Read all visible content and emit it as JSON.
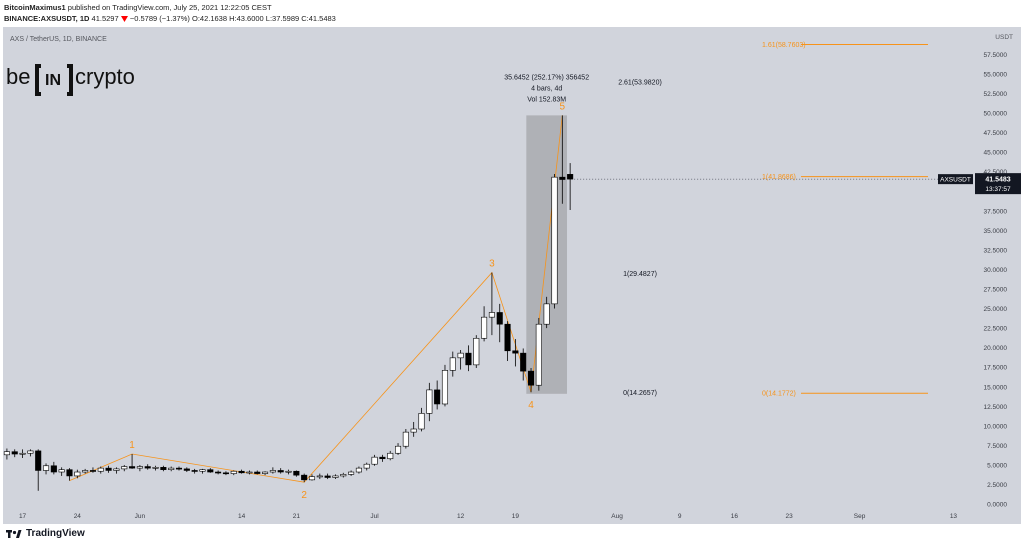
{
  "header": {
    "author": "BitcoinMaximus1",
    "published_text": "published on TradingView.com, July 25, 2021 12:22:05 CEST",
    "symbol_line": "BINANCE:AXSUSDT, 1D",
    "last": "41.5297",
    "change_icon": "down-triangle-icon",
    "change": "−0.5789 (−1.37%)",
    "ohlc": "O:42.1638 H:43.6000 L:37.5989 C:41.5483"
  },
  "logo": {
    "text_left": "be",
    "text_mid": "IN",
    "text_right": "crypto"
  },
  "footer": {
    "brand": "TradingView"
  },
  "colors": {
    "plot_bg": "#d1d4dc",
    "wave": "#f7931a",
    "fib": "#f7931a",
    "text_dark": "#131722",
    "up_candle": "#ffffff",
    "down_candle": "#000000"
  },
  "chart_data": {
    "type": "candlestick",
    "title": "AXS / TetherUS, 1D, BINANCE",
    "y_axis": {
      "range": [
        -0.5,
        61
      ],
      "unit_label": "USDT",
      "ticks": [
        "57.5000",
        "55.0000",
        "52.5000",
        "50.0000",
        "47.5000",
        "45.0000",
        "42.5000",
        "40.0000",
        "37.5000",
        "35.0000",
        "32.5000",
        "30.0000",
        "27.5000",
        "25.0000",
        "22.5000",
        "20.0000",
        "17.5000",
        "15.0000",
        "12.5000",
        "10.0000",
        "7.5000",
        "5.0000",
        "2.5000",
        "0.0000"
      ],
      "tick_values": [
        57.5,
        55,
        52.5,
        50,
        47.5,
        45,
        42.5,
        40,
        37.5,
        35,
        32.5,
        30,
        27.5,
        25,
        22.5,
        20,
        17.5,
        15,
        12.5,
        10,
        7.5,
        5,
        2.5,
        0
      ]
    },
    "x_axis": {
      "ticks": [
        {
          "label": "17",
          "date": "2021-05-17"
        },
        {
          "label": "24",
          "date": "2021-05-24"
        },
        {
          "label": "Jun",
          "date": "2021-06-01"
        },
        {
          "label": "14",
          "date": "2021-06-14"
        },
        {
          "label": "21",
          "date": "2021-06-21"
        },
        {
          "label": "Jul",
          "date": "2021-07-01"
        },
        {
          "label": "12",
          "date": "2021-07-12"
        },
        {
          "label": "19",
          "date": "2021-07-19"
        },
        {
          "label": "Aug",
          "date": "2021-08-01"
        },
        {
          "label": "9",
          "date": "2021-08-09"
        },
        {
          "label": "16",
          "date": "2021-08-16"
        },
        {
          "label": "23",
          "date": "2021-08-23"
        },
        {
          "label": "Sep",
          "date": "2021-09-01"
        },
        {
          "label": "13",
          "date": "2021-09-13"
        }
      ],
      "range": [
        "2021-05-15",
        "2021-09-16"
      ]
    },
    "candles": [
      {
        "date": "2021-05-15",
        "o": 6.3,
        "h": 7.1,
        "l": 5.7,
        "c": 6.7
      },
      {
        "date": "2021-05-16",
        "o": 6.7,
        "h": 7.0,
        "l": 6.0,
        "c": 6.4
      },
      {
        "date": "2021-05-17",
        "o": 6.4,
        "h": 7.0,
        "l": 5.9,
        "c": 6.5
      },
      {
        "date": "2021-05-18",
        "o": 6.5,
        "h": 7.0,
        "l": 6.1,
        "c": 6.8
      },
      {
        "date": "2021-05-19",
        "o": 6.8,
        "h": 7.0,
        "l": 1.7,
        "c": 4.3
      },
      {
        "date": "2021-05-20",
        "o": 4.3,
        "h": 5.2,
        "l": 3.8,
        "c": 4.9
      },
      {
        "date": "2021-05-21",
        "o": 4.9,
        "h": 5.4,
        "l": 3.8,
        "c": 4.1
      },
      {
        "date": "2021-05-22",
        "o": 4.1,
        "h": 4.7,
        "l": 3.6,
        "c": 4.4
      },
      {
        "date": "2021-05-23",
        "o": 4.4,
        "h": 4.6,
        "l": 3.0,
        "c": 3.6
      },
      {
        "date": "2021-05-24",
        "o": 3.6,
        "h": 4.4,
        "l": 3.3,
        "c": 4.1
      },
      {
        "date": "2021-05-25",
        "o": 4.1,
        "h": 4.5,
        "l": 3.9,
        "c": 4.3
      },
      {
        "date": "2021-05-26",
        "o": 4.3,
        "h": 4.7,
        "l": 4.0,
        "c": 4.2
      },
      {
        "date": "2021-05-27",
        "o": 4.2,
        "h": 4.8,
        "l": 3.9,
        "c": 4.6
      },
      {
        "date": "2021-05-28",
        "o": 4.6,
        "h": 4.9,
        "l": 4.0,
        "c": 4.3
      },
      {
        "date": "2021-05-29",
        "o": 4.3,
        "h": 4.7,
        "l": 3.9,
        "c": 4.5
      },
      {
        "date": "2021-05-30",
        "o": 4.5,
        "h": 5.0,
        "l": 4.2,
        "c": 4.8
      },
      {
        "date": "2021-05-31",
        "o": 4.8,
        "h": 6.4,
        "l": 4.5,
        "c": 4.6
      },
      {
        "date": "2021-06-01",
        "o": 4.6,
        "h": 5.0,
        "l": 4.2,
        "c": 4.8
      },
      {
        "date": "2021-06-02",
        "o": 4.8,
        "h": 5.1,
        "l": 4.4,
        "c": 4.6
      },
      {
        "date": "2021-06-03",
        "o": 4.6,
        "h": 4.9,
        "l": 4.3,
        "c": 4.7
      },
      {
        "date": "2021-06-04",
        "o": 4.7,
        "h": 4.9,
        "l": 4.2,
        "c": 4.4
      },
      {
        "date": "2021-06-05",
        "o": 4.4,
        "h": 4.8,
        "l": 4.2,
        "c": 4.6
      },
      {
        "date": "2021-06-06",
        "o": 4.6,
        "h": 4.8,
        "l": 4.3,
        "c": 4.5
      },
      {
        "date": "2021-06-07",
        "o": 4.5,
        "h": 4.7,
        "l": 4.1,
        "c": 4.3
      },
      {
        "date": "2021-06-08",
        "o": 4.3,
        "h": 4.5,
        "l": 3.9,
        "c": 4.2
      },
      {
        "date": "2021-06-09",
        "o": 4.2,
        "h": 4.5,
        "l": 3.9,
        "c": 4.4
      },
      {
        "date": "2021-06-10",
        "o": 4.4,
        "h": 4.6,
        "l": 4.0,
        "c": 4.1
      },
      {
        "date": "2021-06-11",
        "o": 4.1,
        "h": 4.3,
        "l": 3.8,
        "c": 4.0
      },
      {
        "date": "2021-06-12",
        "o": 4.0,
        "h": 4.2,
        "l": 3.7,
        "c": 3.9
      },
      {
        "date": "2021-06-13",
        "o": 3.9,
        "h": 4.3,
        "l": 3.7,
        "c": 4.2
      },
      {
        "date": "2021-06-14",
        "o": 4.2,
        "h": 4.4,
        "l": 3.9,
        "c": 4.0
      },
      {
        "date": "2021-06-15",
        "o": 4.0,
        "h": 4.3,
        "l": 3.8,
        "c": 4.1
      },
      {
        "date": "2021-06-16",
        "o": 4.1,
        "h": 4.3,
        "l": 3.8,
        "c": 3.9
      },
      {
        "date": "2021-06-17",
        "o": 3.9,
        "h": 4.2,
        "l": 3.7,
        "c": 4.1
      },
      {
        "date": "2021-06-18",
        "o": 4.1,
        "h": 4.7,
        "l": 3.9,
        "c": 4.3
      },
      {
        "date": "2021-06-19",
        "o": 4.3,
        "h": 4.6,
        "l": 3.9,
        "c": 4.1
      },
      {
        "date": "2021-06-20",
        "o": 4.1,
        "h": 4.4,
        "l": 3.8,
        "c": 4.2
      },
      {
        "date": "2021-06-21",
        "o": 4.2,
        "h": 4.3,
        "l": 3.5,
        "c": 3.7
      },
      {
        "date": "2021-06-22",
        "o": 3.7,
        "h": 3.9,
        "l": 2.8,
        "c": 3.1
      },
      {
        "date": "2021-06-23",
        "o": 3.1,
        "h": 3.8,
        "l": 3.0,
        "c": 3.5
      },
      {
        "date": "2021-06-24",
        "o": 3.5,
        "h": 3.9,
        "l": 3.2,
        "c": 3.6
      },
      {
        "date": "2021-06-25",
        "o": 3.6,
        "h": 3.9,
        "l": 3.2,
        "c": 3.4
      },
      {
        "date": "2021-06-26",
        "o": 3.4,
        "h": 3.8,
        "l": 3.2,
        "c": 3.6
      },
      {
        "date": "2021-06-27",
        "o": 3.6,
        "h": 4.0,
        "l": 3.4,
        "c": 3.8
      },
      {
        "date": "2021-06-28",
        "o": 3.8,
        "h": 4.3,
        "l": 3.6,
        "c": 4.1
      },
      {
        "date": "2021-06-29",
        "o": 4.1,
        "h": 4.8,
        "l": 3.9,
        "c": 4.6
      },
      {
        "date": "2021-06-30",
        "o": 4.6,
        "h": 5.3,
        "l": 4.3,
        "c": 5.1
      },
      {
        "date": "2021-07-01",
        "o": 5.1,
        "h": 6.3,
        "l": 4.9,
        "c": 6.0
      },
      {
        "date": "2021-07-02",
        "o": 6.0,
        "h": 6.3,
        "l": 5.4,
        "c": 5.8
      },
      {
        "date": "2021-07-03",
        "o": 5.8,
        "h": 6.8,
        "l": 5.6,
        "c": 6.5
      },
      {
        "date": "2021-07-04",
        "o": 6.5,
        "h": 7.8,
        "l": 6.3,
        "c": 7.4
      },
      {
        "date": "2021-07-05",
        "o": 7.4,
        "h": 9.6,
        "l": 7.1,
        "c": 9.2
      },
      {
        "date": "2021-07-06",
        "o": 9.2,
        "h": 10.5,
        "l": 8.6,
        "c": 9.6
      },
      {
        "date": "2021-07-07",
        "o": 9.6,
        "h": 12.3,
        "l": 9.3,
        "c": 11.6
      },
      {
        "date": "2021-07-08",
        "o": 11.6,
        "h": 15.5,
        "l": 10.6,
        "c": 14.6
      },
      {
        "date": "2021-07-09",
        "o": 14.6,
        "h": 15.8,
        "l": 12.1,
        "c": 12.8
      },
      {
        "date": "2021-07-10",
        "o": 12.8,
        "h": 17.8,
        "l": 12.5,
        "c": 17.1
      },
      {
        "date": "2021-07-11",
        "o": 17.1,
        "h": 19.5,
        "l": 16.3,
        "c": 18.7
      },
      {
        "date": "2021-07-12",
        "o": 18.7,
        "h": 19.7,
        "l": 17.2,
        "c": 19.3
      },
      {
        "date": "2021-07-13",
        "o": 19.3,
        "h": 20.3,
        "l": 17.0,
        "c": 17.8
      },
      {
        "date": "2021-07-14",
        "o": 17.8,
        "h": 21.6,
        "l": 17.4,
        "c": 21.2
      },
      {
        "date": "2021-07-15",
        "o": 21.2,
        "h": 25.3,
        "l": 20.8,
        "c": 23.9
      },
      {
        "date": "2021-07-16",
        "o": 23.9,
        "h": 29.6,
        "l": 21.6,
        "c": 24.5
      },
      {
        "date": "2021-07-17",
        "o": 24.5,
        "h": 25.6,
        "l": 20.7,
        "c": 23.0
      },
      {
        "date": "2021-07-18",
        "o": 23.0,
        "h": 23.4,
        "l": 18.3,
        "c": 19.6
      },
      {
        "date": "2021-07-19",
        "o": 19.6,
        "h": 21.1,
        "l": 17.6,
        "c": 19.3
      },
      {
        "date": "2021-07-20",
        "o": 19.3,
        "h": 19.9,
        "l": 15.8,
        "c": 17.0
      },
      {
        "date": "2021-07-21",
        "o": 17.0,
        "h": 17.4,
        "l": 14.3,
        "c": 15.2
      },
      {
        "date": "2021-07-22",
        "o": 15.2,
        "h": 23.8,
        "l": 14.5,
        "c": 23.0
      },
      {
        "date": "2021-07-23",
        "o": 23.0,
        "h": 26.5,
        "l": 22.5,
        "c": 25.6
      },
      {
        "date": "2021-07-24",
        "o": 25.6,
        "h": 42.2,
        "l": 25.0,
        "c": 41.8
      },
      {
        "date": "2021-07-25",
        "o": 41.8,
        "h": 49.7,
        "l": 38.4,
        "c": 41.5
      },
      {
        "date": "2021-07-26",
        "o": 42.16,
        "h": 43.6,
        "l": 37.6,
        "c": 41.55
      }
    ],
    "wave_labels": [
      {
        "label": "1",
        "date": "2021-05-31",
        "value": 6.4
      },
      {
        "label": "2",
        "date": "2021-06-22",
        "value": 2.8
      },
      {
        "label": "3",
        "date": "2021-07-16",
        "value": 29.6
      },
      {
        "label": "4",
        "date": "2021-07-21",
        "value": 14.3
      },
      {
        "label": "5",
        "date": "2021-07-25",
        "value": 49.7
      }
    ],
    "wave_path": [
      {
        "date": "2021-05-23",
        "value": 3.0
      },
      {
        "date": "2021-05-31",
        "value": 6.4
      },
      {
        "date": "2021-06-22",
        "value": 2.8
      },
      {
        "date": "2021-07-16",
        "value": 29.6
      },
      {
        "date": "2021-07-21",
        "value": 14.3
      },
      {
        "date": "2021-07-25",
        "value": 49.7
      }
    ],
    "measure_box": {
      "from_date": "2021-07-21",
      "to_date": "2021-07-25",
      "low": 14.1,
      "high": 49.7,
      "lines": [
        "35.6452 (252.17%) 356452",
        "4 bars, 4d",
        "Vol 152.83M"
      ]
    },
    "fib_levels": [
      {
        "label": "1.61(58.7603)",
        "value": 58.7603,
        "color": "#f7931a",
        "line": true
      },
      {
        "label": "2.61(53.9820)",
        "value": 53.982,
        "color": "#131722",
        "line": false
      },
      {
        "label": "1(41.8686)",
        "value": 41.8686,
        "color": "#f7931a",
        "line": true
      },
      {
        "label": "1(29.4827)",
        "value": 29.4827,
        "color": "#131722",
        "line": false
      },
      {
        "label": "0(14.2657)",
        "value": 14.2657,
        "color": "#131722",
        "line": false
      },
      {
        "label": "0(14.1772)",
        "value": 14.1772,
        "color": "#f7931a",
        "line": true
      }
    ],
    "price_tag": {
      "symbol": "AXSUSDT",
      "price": "41.5483",
      "countdown": "13:37:57",
      "value": 41.5483
    }
  }
}
